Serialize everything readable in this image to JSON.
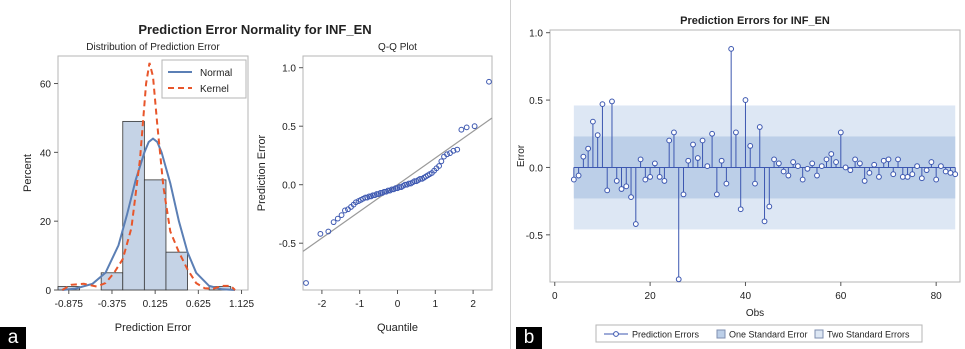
{
  "panel_a": {
    "title": "Prediction Error Normality for INF_EN",
    "tag": "a"
  },
  "panel_b": {
    "tag": "b"
  },
  "chart_data": [
    {
      "type": "bar",
      "title": "Distribution of Prediction Error",
      "xlabel": "Prediction Error",
      "ylabel": "Percent",
      "categories": [
        -0.875,
        -0.625,
        -0.375,
        -0.125,
        0.125,
        0.375,
        0.625,
        0.875,
        1.125
      ],
      "values": [
        1,
        0,
        5,
        49,
        32,
        11,
        0,
        1,
        0
      ],
      "x_tick_labels": [
        "-0.875",
        "-0.375",
        "0.125",
        "0.625",
        "1.125"
      ],
      "y_ticks": [
        0,
        20,
        40,
        60
      ],
      "ylim": [
        0,
        68
      ],
      "legend": [
        "Normal",
        "Kernel"
      ],
      "legend_position": "top-right",
      "bar_color": "#c5d3e6",
      "normal_color": "#5b7fb5",
      "kernel_color": "#e8562b",
      "normal_curve": {
        "x": [
          -0.95,
          -0.8,
          -0.6,
          -0.45,
          -0.3,
          -0.2,
          -0.1,
          0,
          0.05,
          0.1,
          0.15,
          0.2,
          0.3,
          0.4,
          0.5,
          0.6,
          0.75,
          0.9,
          1.05
        ],
        "y": [
          0,
          0.4,
          1.8,
          5,
          13,
          22,
          32,
          40,
          43,
          44,
          43,
          40,
          31,
          20,
          11,
          5,
          1.2,
          0.2,
          0
        ]
      },
      "kernel_curve": {
        "x": [
          -0.95,
          -0.85,
          -0.7,
          -0.55,
          -0.45,
          -0.35,
          -0.25,
          -0.15,
          -0.05,
          0.02,
          0.06,
          0.1,
          0.15,
          0.22,
          0.3,
          0.4,
          0.5,
          0.6,
          0.7,
          0.8,
          0.9,
          1.0,
          1.05
        ],
        "y": [
          0,
          1.5,
          1.8,
          1,
          2,
          5,
          9,
          18,
          38,
          60,
          66,
          62,
          48,
          30,
          17,
          11,
          6,
          2,
          0.5,
          0.4,
          1.2,
          1.2,
          0
        ]
      }
    },
    {
      "type": "scatter",
      "title": "Q-Q Plot",
      "xlabel": "Quantile",
      "ylabel": "Prediction Error",
      "xlim": [
        -2.5,
        2.5
      ],
      "ylim": [
        -0.9,
        1.1
      ],
      "x_ticks": [
        -2,
        -1,
        0,
        1,
        2
      ],
      "y_ticks": [
        -0.5,
        0.0,
        0.5,
        1.0
      ],
      "y_tick_labels": [
        "-0.5",
        "0.0",
        "0.5",
        "1.0"
      ],
      "reference_line": {
        "x": [
          -2.5,
          2.5
        ],
        "y": [
          -0.57,
          0.57
        ]
      },
      "marker_color": "#3c57b0",
      "x": [
        -2.42,
        -2.04,
        -1.83,
        -1.69,
        -1.58,
        -1.48,
        -1.39,
        -1.31,
        -1.23,
        -1.16,
        -1.1,
        -1.03,
        -0.97,
        -0.91,
        -0.85,
        -0.8,
        -0.75,
        -0.7,
        -0.65,
        -0.6,
        -0.55,
        -0.5,
        -0.45,
        -0.4,
        -0.35,
        -0.3,
        -0.25,
        -0.2,
        -0.15,
        -0.1,
        -0.05,
        0.0,
        0.05,
        0.1,
        0.15,
        0.2,
        0.25,
        0.3,
        0.35,
        0.4,
        0.45,
        0.5,
        0.55,
        0.6,
        0.65,
        0.7,
        0.75,
        0.8,
        0.85,
        0.91,
        0.97,
        1.03,
        1.1,
        1.16,
        1.23,
        1.31,
        1.39,
        1.48,
        1.58,
        1.69,
        1.83,
        2.04,
        2.42
      ],
      "y": [
        -0.84,
        -0.42,
        -0.4,
        -0.32,
        -0.29,
        -0.26,
        -0.22,
        -0.21,
        -0.19,
        -0.17,
        -0.15,
        -0.14,
        -0.13,
        -0.12,
        -0.11,
        -0.11,
        -0.1,
        -0.1,
        -0.09,
        -0.09,
        -0.08,
        -0.08,
        -0.07,
        -0.07,
        -0.06,
        -0.06,
        -0.05,
        -0.05,
        -0.04,
        -0.04,
        -0.03,
        -0.03,
        -0.02,
        -0.02,
        -0.01,
        0.0,
        0.0,
        0.01,
        0.01,
        0.02,
        0.03,
        0.03,
        0.04,
        0.05,
        0.05,
        0.06,
        0.07,
        0.08,
        0.09,
        0.1,
        0.12,
        0.14,
        0.16,
        0.2,
        0.24,
        0.26,
        0.27,
        0.29,
        0.3,
        0.47,
        0.49,
        0.5,
        0.88
      ]
    },
    {
      "type": "scatter",
      "title": "Prediction Errors for INF_EN",
      "xlabel": "Obs",
      "ylabel": "Error",
      "xlim": [
        -1,
        85
      ],
      "ylim": [
        -0.85,
        1.02
      ],
      "x_ticks": [
        0,
        20,
        40,
        60,
        80
      ],
      "y_ticks": [
        -0.5,
        0.0,
        0.5,
        1.0
      ],
      "y_tick_labels": [
        "-0.5",
        "0.0",
        "0.5",
        "1.0"
      ],
      "bands": {
        "one_standard_error": [
          -0.23,
          0.23
        ],
        "two_standard_errors": [
          -0.46,
          0.46
        ],
        "x_range": [
          4,
          84
        ]
      },
      "legend": [
        "Prediction Errors",
        "One Standard Error",
        "Two Standard Errors"
      ],
      "legend_position": "bottom",
      "marker_color": "#3c57b0",
      "band_inner_color": "#bccfe8",
      "band_outer_color": "#dde7f4",
      "x": [
        4,
        5,
        6,
        7,
        8,
        9,
        10,
        11,
        12,
        13,
        14,
        15,
        16,
        17,
        18,
        19,
        20,
        21,
        22,
        23,
        24,
        25,
        26,
        27,
        28,
        29,
        30,
        31,
        32,
        33,
        34,
        35,
        36,
        37,
        38,
        39,
        40,
        41,
        42,
        43,
        44,
        45,
        46,
        47,
        48,
        49,
        50,
        51,
        52,
        53,
        54,
        55,
        56,
        57,
        58,
        59,
        60,
        61,
        62,
        63,
        64,
        65,
        66,
        67,
        68,
        69,
        70,
        71,
        72,
        73,
        74,
        75,
        76,
        77,
        78,
        79,
        80,
        81,
        82,
        83,
        84
      ],
      "y": [
        -0.09,
        -0.06,
        0.08,
        0.14,
        0.34,
        0.24,
        0.47,
        -0.17,
        0.49,
        -0.1,
        -0.16,
        -0.14,
        -0.22,
        -0.42,
        0.06,
        -0.09,
        -0.07,
        0.03,
        -0.07,
        -0.1,
        0.2,
        0.26,
        -0.83,
        -0.2,
        0.05,
        0.17,
        0.07,
        0.2,
        0.01,
        0.25,
        -0.2,
        0.05,
        -0.12,
        0.88,
        0.26,
        -0.31,
        0.5,
        0.16,
        -0.12,
        0.3,
        -0.4,
        -0.29,
        0.06,
        0.03,
        -0.03,
        -0.06,
        0.04,
        0.01,
        -0.09,
        -0.01,
        0.03,
        -0.06,
        0.01,
        0.06,
        0.1,
        0.04,
        0.26,
        0.0,
        -0.02,
        0.06,
        0.03,
        -0.1,
        -0.04,
        0.02,
        -0.07,
        0.05,
        0.06,
        -0.05,
        0.06,
        -0.07,
        -0.07,
        -0.05,
        0.01,
        -0.08,
        -0.02,
        0.04,
        -0.09,
        0.01,
        -0.03,
        -0.04,
        -0.05
      ]
    }
  ]
}
